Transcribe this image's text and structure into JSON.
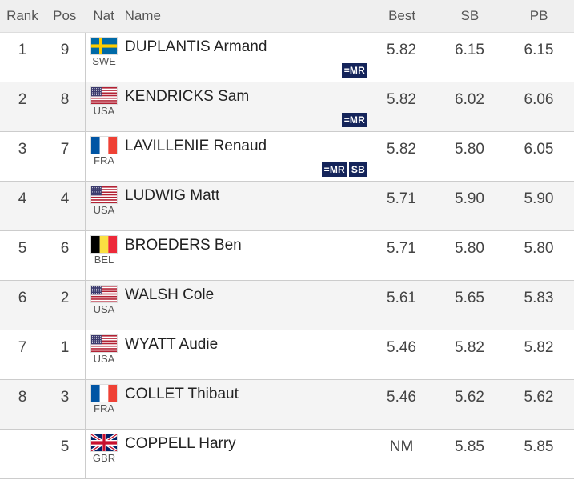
{
  "headers": {
    "rank": "Rank",
    "pos": "Pos",
    "nat": "Nat",
    "name": "Name",
    "best": "Best",
    "sb": "SB",
    "pb": "PB"
  },
  "rows": [
    {
      "rank": "1",
      "pos": "9",
      "country": "SWE",
      "name": "DUPLANTIS Armand",
      "best": "5.82",
      "sb": "6.15",
      "pb": "6.15",
      "badges": [
        "=MR"
      ]
    },
    {
      "rank": "2",
      "pos": "8",
      "country": "USA",
      "name": "KENDRICKS Sam",
      "best": "5.82",
      "sb": "6.02",
      "pb": "6.06",
      "badges": [
        "=MR"
      ]
    },
    {
      "rank": "3",
      "pos": "7",
      "country": "FRA",
      "name": "LAVILLENIE Renaud",
      "best": "5.82",
      "sb": "5.80",
      "pb": "6.05",
      "badges": [
        "=MR",
        "SB"
      ]
    },
    {
      "rank": "4",
      "pos": "4",
      "country": "USA",
      "name": "LUDWIG Matt",
      "best": "5.71",
      "sb": "5.90",
      "pb": "5.90",
      "badges": []
    },
    {
      "rank": "5",
      "pos": "6",
      "country": "BEL",
      "name": "BROEDERS Ben",
      "best": "5.71",
      "sb": "5.80",
      "pb": "5.80",
      "badges": []
    },
    {
      "rank": "6",
      "pos": "2",
      "country": "USA",
      "name": "WALSH Cole",
      "best": "5.61",
      "sb": "5.65",
      "pb": "5.83",
      "badges": []
    },
    {
      "rank": "7",
      "pos": "1",
      "country": "USA",
      "name": "WYATT Audie",
      "best": "5.46",
      "sb": "5.82",
      "pb": "5.82",
      "badges": []
    },
    {
      "rank": "8",
      "pos": "3",
      "country": "FRA",
      "name": "COLLET Thibaut",
      "best": "5.46",
      "sb": "5.62",
      "pb": "5.62",
      "badges": []
    },
    {
      "rank": "",
      "pos": "5",
      "country": "GBR",
      "name": "COPPELL Harry",
      "best": "NM",
      "sb": "5.85",
      "pb": "5.85",
      "badges": []
    }
  ],
  "colors": {
    "badge_bg": "#14245a",
    "header_bg": "#efefef",
    "row_alt_bg": "#f4f4f4"
  }
}
